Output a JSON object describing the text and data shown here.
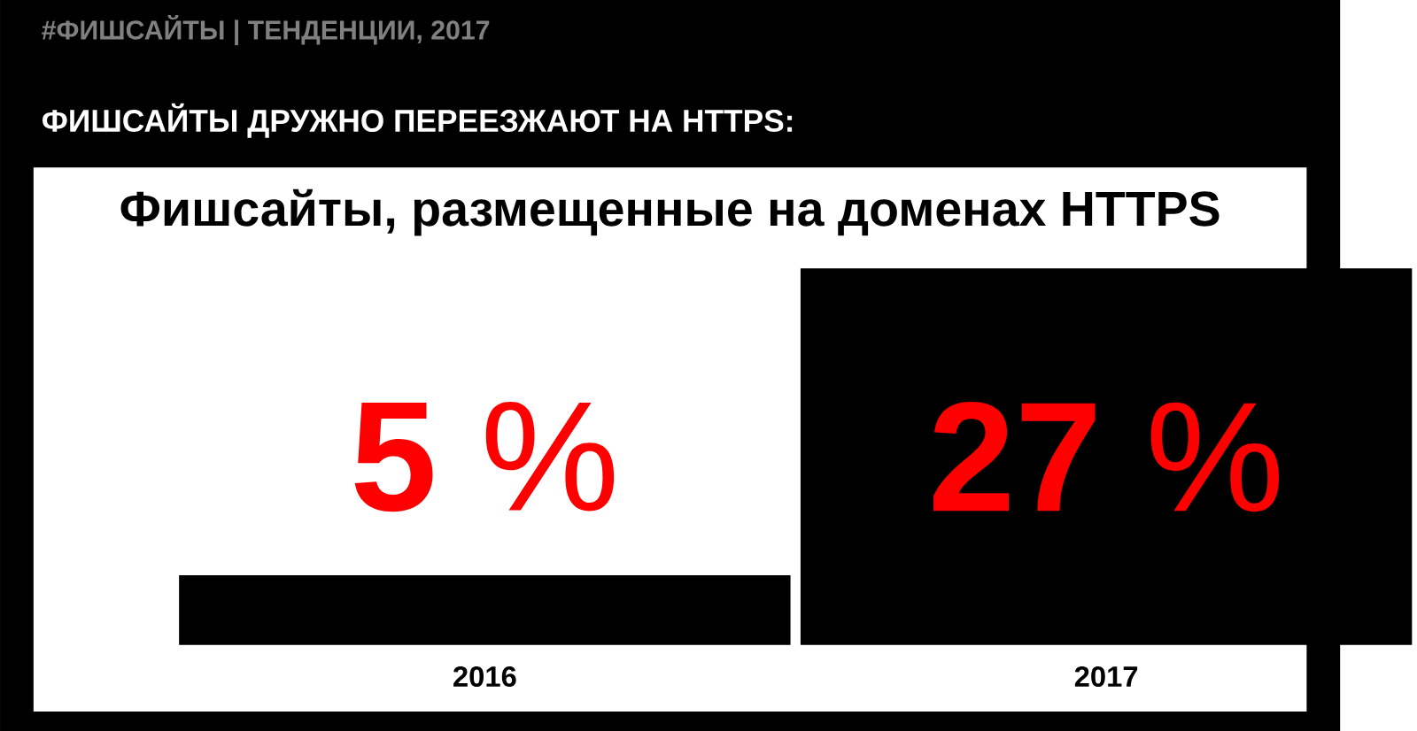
{
  "chart_data": {
    "type": "bar",
    "title": "ФИШСАЙТЫ ДРУЖНО ПЕРЕЕЗЖАЮТ НА HTTPS:",
    "subtitle": "Фишсайты, размещенные на доменах HTTPS",
    "annotations": [
      "#ФИШСАЙТЫ | ТЕНДЕНЦИИ, 2017"
    ],
    "categories": [
      "2016",
      "2017"
    ],
    "values": [
      5,
      27
    ],
    "color": "#000000",
    "value_labels": [
      "**5** %",
      "**27** %"
    ]
  }
}
